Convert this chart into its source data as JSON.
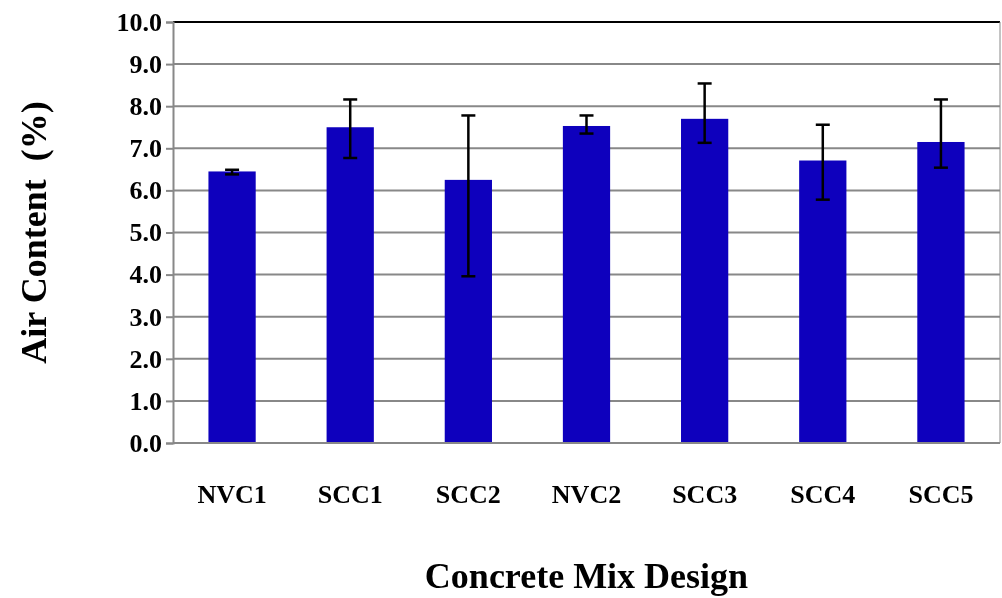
{
  "chart_data": {
    "type": "bar",
    "xlabel": "Concrete Mix Design",
    "ylabel": "Air Content  (%)",
    "categories": [
      "NVC1",
      "SCC1",
      "SCC2",
      "NVC2",
      "SCC3",
      "SCC4",
      "SCC5"
    ],
    "values": [
      6.45,
      7.5,
      6.25,
      7.53,
      7.7,
      6.71,
      7.15
    ],
    "errors": [
      [
        6.38,
        6.49
      ],
      [
        6.77,
        8.16
      ],
      [
        3.96,
        7.78
      ],
      [
        7.35,
        7.78
      ],
      [
        7.13,
        8.54
      ],
      [
        5.78,
        7.56
      ],
      [
        6.54,
        8.16
      ]
    ],
    "color": "#0e00bd",
    "ylim": [
      0,
      10
    ],
    "yticks": [
      {
        "value": 0,
        "label": "0.0"
      },
      {
        "value": 1,
        "label": "1.0"
      },
      {
        "value": 2,
        "label": "2.0"
      },
      {
        "value": 3,
        "label": "3.0"
      },
      {
        "value": 4,
        "label": "4.0"
      },
      {
        "value": 5,
        "label": "5.0"
      },
      {
        "value": 6,
        "label": "6.0"
      },
      {
        "value": 7,
        "label": "7.0"
      },
      {
        "value": 8,
        "label": "8.0"
      },
      {
        "value": 9,
        "label": "9.0"
      },
      {
        "value": 10,
        "label": "10.0"
      }
    ],
    "grid": "y"
  }
}
